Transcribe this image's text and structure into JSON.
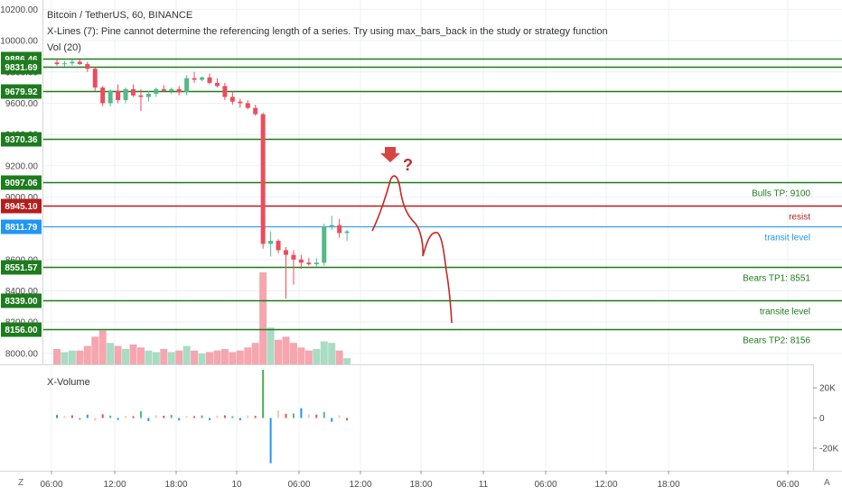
{
  "header": {
    "title": "Bitcoin / TetherUS, 60, BINANCE",
    "indicator_error": "X-Lines (7): Pine cannot determine the referencing length of a series. Try using max_bars_back in the study or strategy function",
    "volume_label": "Vol (20)"
  },
  "subpane": {
    "title": "X-Volume"
  },
  "axis_buttons": {
    "left": "Z",
    "right": "A"
  },
  "colors": {
    "up": "#53b987",
    "down": "#eb4d5c",
    "vol_up": "#a9dcc3",
    "vol_down": "#f5a6ae",
    "support": "#1e7b1e",
    "resist": "#b71c1c",
    "transit": "#2196f3",
    "drawing": "#c62828"
  },
  "chart_data": [
    {
      "type": "candlestick",
      "title": "Bitcoin / TetherUS, 60, BINANCE",
      "ylim": [
        7930,
        10260
      ],
      "y_ticks": [
        {
          "value": 10200,
          "label": "10200.00"
        },
        {
          "value": 10000,
          "label": "10000.00"
        },
        {
          "value": 9800,
          "label": "9800.00"
        },
        {
          "value": 9600,
          "label": "9600.00"
        },
        {
          "value": 9400,
          "label": "9400.00"
        },
        {
          "value": 9200,
          "label": "9200.00"
        },
        {
          "value": 9000,
          "label": "9000.00"
        },
        {
          "value": 8800,
          "label": "8800.00"
        },
        {
          "value": 8600,
          "label": "8600.00"
        },
        {
          "value": 8400,
          "label": "8400.00"
        },
        {
          "value": 8200,
          "label": "8200.00"
        },
        {
          "value": 8000,
          "label": "8000.00"
        }
      ],
      "x_ticks": [
        "06:00",
        "12:00",
        "18:00",
        "10",
        "06:00",
        "12:00",
        "18:00",
        "11",
        "06:00",
        "12:00",
        "18:00",
        "06:00"
      ],
      "levels": [
        {
          "price": 9886.46,
          "label": "9886.46",
          "kind": "support",
          "name": ""
        },
        {
          "price": 9831.69,
          "label": "9831.69",
          "kind": "support",
          "name": ""
        },
        {
          "price": 9679.92,
          "label": "9679.92",
          "kind": "support",
          "name": ""
        },
        {
          "price": 9370.36,
          "label": "9370.36",
          "kind": "support",
          "name": ""
        },
        {
          "price": 9097.06,
          "label": "9097.06",
          "kind": "support",
          "name": "Bulls TP: 9100"
        },
        {
          "price": 8945.1,
          "label": "8945.10",
          "kind": "resist",
          "name": "resist"
        },
        {
          "price": 8811.79,
          "label": "8811.79",
          "kind": "transit",
          "name": "transit level"
        },
        {
          "price": 8551.57,
          "label": "8551.57",
          "kind": "support",
          "name": "Bears TP1: 8551"
        },
        {
          "price": 8339.0,
          "label": "8339.00",
          "kind": "support",
          "name": "transite level"
        },
        {
          "price": 8156.0,
          "label": "8156.00",
          "kind": "support",
          "name": "Bears TP2: 8156"
        }
      ],
      "candles": [
        {
          "o": 9860,
          "h": 9880,
          "l": 9840,
          "c": 9850,
          "v": 10
        },
        {
          "o": 9850,
          "h": 9870,
          "l": 9835,
          "c": 9855,
          "v": 8
        },
        {
          "o": 9855,
          "h": 9880,
          "l": 9840,
          "c": 9865,
          "v": 9
        },
        {
          "o": 9865,
          "h": 9880,
          "l": 9845,
          "c": 9850,
          "v": 9
        },
        {
          "o": 9850,
          "h": 9865,
          "l": 9800,
          "c": 9820,
          "v": 12
        },
        {
          "o": 9820,
          "h": 9830,
          "l": 9680,
          "c": 9700,
          "v": 18
        },
        {
          "o": 9700,
          "h": 9710,
          "l": 9580,
          "c": 9600,
          "v": 22
        },
        {
          "o": 9600,
          "h": 9690,
          "l": 9580,
          "c": 9680,
          "v": 14
        },
        {
          "o": 9680,
          "h": 9720,
          "l": 9600,
          "c": 9620,
          "v": 12
        },
        {
          "o": 9620,
          "h": 9700,
          "l": 9600,
          "c": 9690,
          "v": 10
        },
        {
          "o": 9690,
          "h": 9720,
          "l": 9640,
          "c": 9650,
          "v": 13
        },
        {
          "o": 9650,
          "h": 9690,
          "l": 9550,
          "c": 9640,
          "v": 11
        },
        {
          "o": 9640,
          "h": 9680,
          "l": 9610,
          "c": 9660,
          "v": 9
        },
        {
          "o": 9660,
          "h": 9700,
          "l": 9640,
          "c": 9690,
          "v": 8
        },
        {
          "o": 9690,
          "h": 9715,
          "l": 9670,
          "c": 9680,
          "v": 10
        },
        {
          "o": 9680,
          "h": 9700,
          "l": 9660,
          "c": 9690,
          "v": 8
        },
        {
          "o": 9690,
          "h": 9710,
          "l": 9650,
          "c": 9670,
          "v": 9
        },
        {
          "o": 9670,
          "h": 9780,
          "l": 9650,
          "c": 9760,
          "v": 12
        },
        {
          "o": 9760,
          "h": 9800,
          "l": 9730,
          "c": 9750,
          "v": 9
        },
        {
          "o": 9750,
          "h": 9770,
          "l": 9740,
          "c": 9765,
          "v": 7
        },
        {
          "o": 9765,
          "h": 9790,
          "l": 9720,
          "c": 9730,
          "v": 8
        },
        {
          "o": 9730,
          "h": 9760,
          "l": 9700,
          "c": 9710,
          "v": 9
        },
        {
          "o": 9710,
          "h": 9730,
          "l": 9620,
          "c": 9640,
          "v": 10
        },
        {
          "o": 9640,
          "h": 9680,
          "l": 9590,
          "c": 9610,
          "v": 8
        },
        {
          "o": 9610,
          "h": 9630,
          "l": 9570,
          "c": 9600,
          "v": 9
        },
        {
          "o": 9600,
          "h": 9620,
          "l": 9560,
          "c": 9570,
          "v": 11
        },
        {
          "o": 9570,
          "h": 9590,
          "l": 9520,
          "c": 9530,
          "v": 14
        },
        {
          "o": 9530,
          "h": 9540,
          "l": 8670,
          "c": 8700,
          "v": 60
        },
        {
          "o": 8700,
          "h": 8780,
          "l": 8620,
          "c": 8720,
          "v": 24
        },
        {
          "o": 8720,
          "h": 8730,
          "l": 8640,
          "c": 8660,
          "v": 16
        },
        {
          "o": 8660,
          "h": 8680,
          "l": 8350,
          "c": 8630,
          "v": 18
        },
        {
          "o": 8630,
          "h": 8660,
          "l": 8440,
          "c": 8600,
          "v": 14
        },
        {
          "o": 8600,
          "h": 8630,
          "l": 8540,
          "c": 8580,
          "v": 11
        },
        {
          "o": 8580,
          "h": 8610,
          "l": 8560,
          "c": 8570,
          "v": 9
        },
        {
          "o": 8570,
          "h": 8610,
          "l": 8550,
          "c": 8580,
          "v": 10
        },
        {
          "o": 8580,
          "h": 8830,
          "l": 8560,
          "c": 8810,
          "v": 15
        },
        {
          "o": 8810,
          "h": 8880,
          "l": 8790,
          "c": 8820,
          "v": 14
        },
        {
          "o": 8820,
          "h": 8860,
          "l": 8740,
          "c": 8770,
          "v": 9
        },
        {
          "o": 8770,
          "h": 8790,
          "l": 8720,
          "c": 8780,
          "v": 4
        }
      ]
    },
    {
      "type": "bar",
      "title": "X-Volume",
      "ylim": [
        -35000,
        35000
      ],
      "y_ticks": [
        {
          "value": 20000,
          "label": "20K"
        },
        {
          "value": 0,
          "label": "0"
        },
        {
          "value": -20000,
          "label": "-20K"
        }
      ],
      "values": [
        2000,
        1500,
        1800,
        -1200,
        2200,
        -1800,
        2500,
        1600,
        -1300,
        1400,
        1200,
        4500,
        -2000,
        1800,
        1500,
        2000,
        -1600,
        1300,
        1200,
        1700,
        -1400,
        1500,
        1800,
        1200,
        -1500,
        1600,
        1400,
        32000,
        -30000,
        5000,
        2800,
        3000,
        6500,
        2500,
        2200,
        4000,
        -2500,
        1800,
        -1600
      ]
    }
  ]
}
